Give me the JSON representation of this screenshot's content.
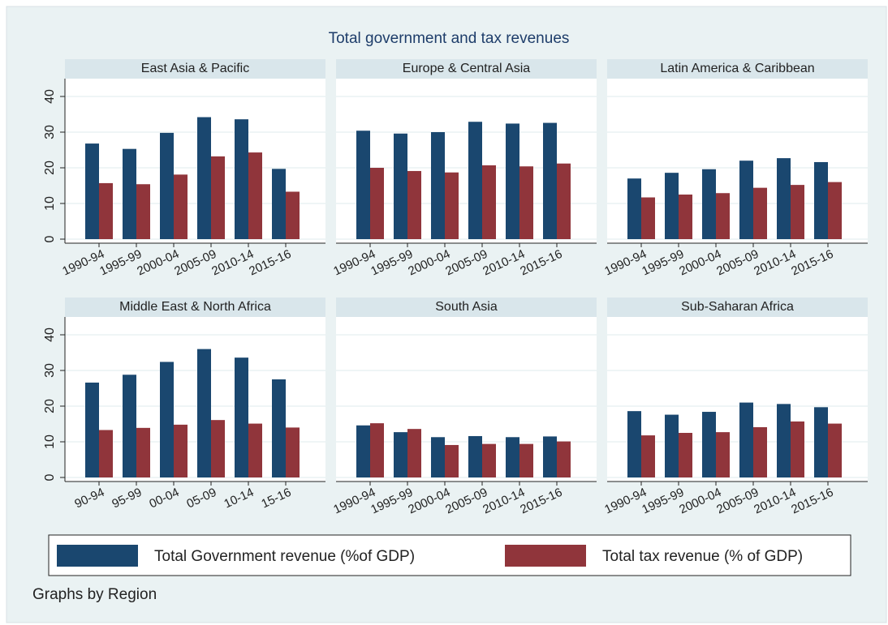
{
  "title": "Total government and tax revenues",
  "note": "Graphs by Region",
  "legend": [
    {
      "name": "Total Government revenue (%of GDP)",
      "color": "#1a476f"
    },
    {
      "name": "Total tax revenue (% of GDP)",
      "color": "#90353b"
    }
  ],
  "chart_data": [
    {
      "type": "bar",
      "title": "East Asia & Pacific",
      "categories": [
        "1990-94",
        "1995-99",
        "2000-04",
        "2005-09",
        "2010-14",
        "2015-16"
      ],
      "series": [
        {
          "values": [
            26.8,
            25.3,
            29.8,
            34.2,
            33.6,
            19.7
          ]
        },
        {
          "values": [
            15.7,
            15.4,
            18.1,
            23.2,
            24.3,
            13.3
          ]
        }
      ],
      "ylim": [
        0,
        45
      ],
      "yticks": [
        0,
        10,
        20,
        30,
        40
      ],
      "grid": true
    },
    {
      "type": "bar",
      "title": "Europe & Central Asia",
      "categories": [
        "1990-94",
        "1995-99",
        "2000-04",
        "2005-09",
        "2010-14",
        "2015-16"
      ],
      "series": [
        {
          "values": [
            30.4,
            29.6,
            30.0,
            32.9,
            32.4,
            32.6
          ]
        },
        {
          "values": [
            20.0,
            19.1,
            18.7,
            20.7,
            20.4,
            21.2
          ]
        }
      ],
      "ylim": [
        0,
        45
      ],
      "yticks": [
        0,
        10,
        20,
        30,
        40
      ],
      "grid": true
    },
    {
      "type": "bar",
      "title": "Latin America & Caribbean",
      "categories": [
        "1990-94",
        "1995-99",
        "2000-04",
        "2005-09",
        "2010-14",
        "2015-16"
      ],
      "series": [
        {
          "values": [
            17.0,
            18.6,
            19.6,
            22.0,
            22.7,
            21.6
          ]
        },
        {
          "values": [
            11.7,
            12.5,
            12.9,
            14.4,
            15.2,
            16.0
          ]
        }
      ],
      "ylim": [
        0,
        45
      ],
      "yticks": [
        0,
        10,
        20,
        30,
        40
      ],
      "grid": true
    },
    {
      "type": "bar",
      "title": "Middle East & North Africa",
      "categories": [
        "90-94",
        "95-99",
        "00-04",
        "05-09",
        "10-14",
        "15-16"
      ],
      "series": [
        {
          "values": [
            26.6,
            28.8,
            32.4,
            36.0,
            33.6,
            27.5
          ]
        },
        {
          "values": [
            13.3,
            13.9,
            14.8,
            16.1,
            15.1,
            14.0
          ]
        }
      ],
      "ylim": [
        0,
        45
      ],
      "yticks": [
        0,
        10,
        20,
        30,
        40
      ],
      "grid": true
    },
    {
      "type": "bar",
      "title": "South Asia",
      "categories": [
        "1990-94",
        "1995-99",
        "2000-04",
        "2005-09",
        "2010-14",
        "2015-16"
      ],
      "series": [
        {
          "values": [
            14.6,
            12.7,
            11.3,
            11.6,
            11.3,
            11.5
          ]
        },
        {
          "values": [
            15.2,
            13.6,
            9.1,
            9.4,
            9.4,
            10.1
          ]
        }
      ],
      "ylim": [
        0,
        45
      ],
      "yticks": [
        0,
        10,
        20,
        30,
        40
      ],
      "grid": true
    },
    {
      "type": "bar",
      "title": "Sub-Saharan Africa",
      "categories": [
        "1990-94",
        "1995-99",
        "2000-04",
        "2005-09",
        "2010-14",
        "2015-16"
      ],
      "series": [
        {
          "values": [
            18.6,
            17.6,
            18.4,
            21.0,
            20.6,
            19.7
          ]
        },
        {
          "values": [
            11.8,
            12.5,
            12.7,
            14.1,
            15.7,
            15.1
          ]
        }
      ],
      "ylim": [
        0,
        45
      ],
      "yticks": [
        0,
        10,
        20,
        30,
        40
      ],
      "grid": true
    }
  ]
}
